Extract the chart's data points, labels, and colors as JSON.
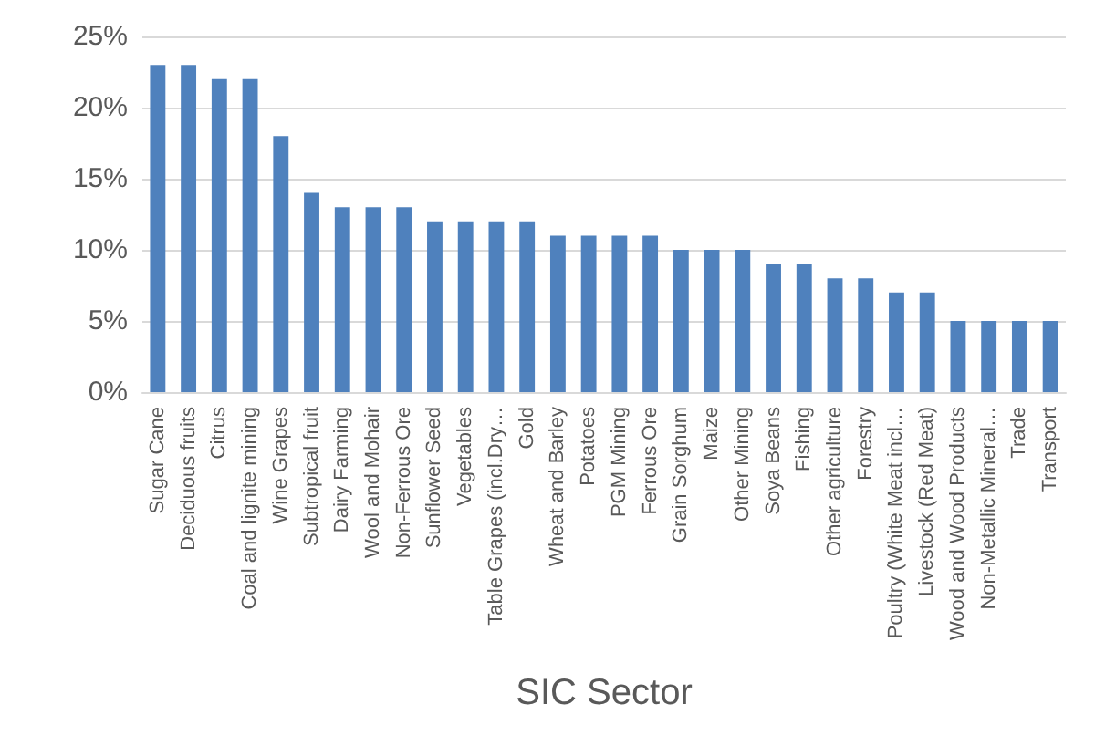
{
  "chart_data": {
    "type": "bar",
    "xlabel": "SIC Sector",
    "color": "#4f81bd",
    "categories": [
      "Sugar Cane",
      "Deciduous fruits",
      "Citrus",
      "Coal and lignite mining",
      "Wine Grapes",
      "Subtropical fruit",
      "Dairy Farming",
      "Wool and Mohair",
      "Non-Ferrous Ore",
      "Sunflower Seed",
      "Vegetables",
      "Table Grapes (incl.Dry…",
      "Gold",
      "Wheat and Barley",
      "Potatoes",
      "PGM Mining",
      "Ferrous Ore",
      "Grain Sorghum",
      "Maize",
      "Other Mining",
      "Soya Beans",
      "Fishing",
      "Other agriculture",
      "Forestry",
      "Poultry (White Meat incl…",
      "Livestock (Red Meat)",
      "Wood and Wood Products",
      "Non-Metallic Mineral…",
      "Trade",
      "Transport"
    ],
    "values": [
      23,
      23,
      22,
      22,
      18,
      14,
      13,
      13,
      13,
      12,
      12,
      12,
      12,
      11,
      11,
      11,
      11,
      10,
      10,
      10,
      9,
      9,
      8,
      8,
      7,
      7,
      5,
      5,
      5,
      5
    ],
    "ylim": [
      0,
      25
    ],
    "yticks": [
      {
        "value": 0,
        "label": "0%"
      },
      {
        "value": 5,
        "label": "5%"
      },
      {
        "value": 10,
        "label": "10%"
      },
      {
        "value": 15,
        "label": "15%"
      },
      {
        "value": 20,
        "label": "20%"
      },
      {
        "value": 25,
        "label": "25%"
      }
    ],
    "grid": "y"
  }
}
